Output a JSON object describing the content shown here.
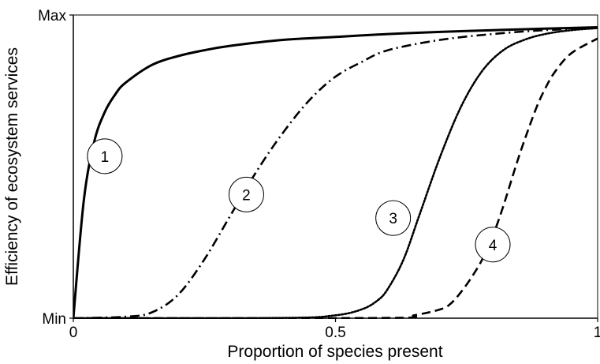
{
  "chart_data": {
    "type": "line",
    "title": "",
    "xlabel": "Proportion of species present",
    "ylabel": "Efficiency of ecosystem services",
    "xlim": [
      0,
      1
    ],
    "ylim": [
      0,
      1
    ],
    "x_ticks": [
      {
        "value": 0,
        "label": "0"
      },
      {
        "value": 0.5,
        "label": "0.5"
      },
      {
        "value": 1,
        "label": "1"
      }
    ],
    "y_ticks": [
      {
        "value": 0,
        "label": "Min"
      },
      {
        "value": 1,
        "label": "Max"
      }
    ],
    "grid": false,
    "legend": "none",
    "series": [
      {
        "label": "1",
        "line_style": "solid",
        "callout_at": [
          0.06,
          0.55
        ],
        "x": [
          0,
          0.02,
          0.04,
          0.06,
          0.08,
          0.1,
          0.15,
          0.2,
          0.25,
          0.3,
          0.4,
          0.5,
          0.6,
          0.7,
          0.8,
          0.9,
          1.0
        ],
        "y": [
          0,
          0.4,
          0.6,
          0.7,
          0.76,
          0.8,
          0.86,
          0.89,
          0.91,
          0.925,
          0.945,
          0.955,
          0.965,
          0.972,
          0.978,
          0.983,
          0.988
        ]
      },
      {
        "label": "2",
        "line_style": "dash-dot",
        "callout_at": [
          0.33,
          0.42
        ],
        "x": [
          0,
          0.1,
          0.15,
          0.2,
          0.25,
          0.3,
          0.35,
          0.4,
          0.45,
          0.5,
          0.55,
          0.6,
          0.7,
          0.8,
          0.9,
          1.0
        ],
        "y": [
          0,
          0.005,
          0.02,
          0.08,
          0.2,
          0.35,
          0.5,
          0.63,
          0.74,
          0.82,
          0.87,
          0.91,
          0.945,
          0.965,
          0.978,
          0.985
        ]
      },
      {
        "label": "3",
        "line_style": "dotted",
        "callout_at": [
          0.61,
          0.34
        ],
        "x": [
          0,
          0.4,
          0.5,
          0.55,
          0.58,
          0.6,
          0.63,
          0.66,
          0.7,
          0.74,
          0.78,
          0.82,
          0.86,
          0.9,
          0.95,
          1.0
        ],
        "y": [
          0,
          0.001,
          0.01,
          0.03,
          0.06,
          0.1,
          0.2,
          0.35,
          0.55,
          0.72,
          0.84,
          0.91,
          0.945,
          0.965,
          0.978,
          0.985
        ]
      },
      {
        "label": "4",
        "line_style": "dashed",
        "callout_at": [
          0.8,
          0.25
        ],
        "x": [
          0,
          0.6,
          0.65,
          0.7,
          0.72,
          0.74,
          0.76,
          0.78,
          0.8,
          0.82,
          0.85,
          0.88,
          0.9,
          0.92,
          0.95,
          1.0
        ],
        "y": [
          0,
          0.001,
          0.01,
          0.03,
          0.05,
          0.09,
          0.14,
          0.2,
          0.28,
          0.38,
          0.55,
          0.7,
          0.78,
          0.84,
          0.9,
          0.95
        ]
      }
    ]
  }
}
